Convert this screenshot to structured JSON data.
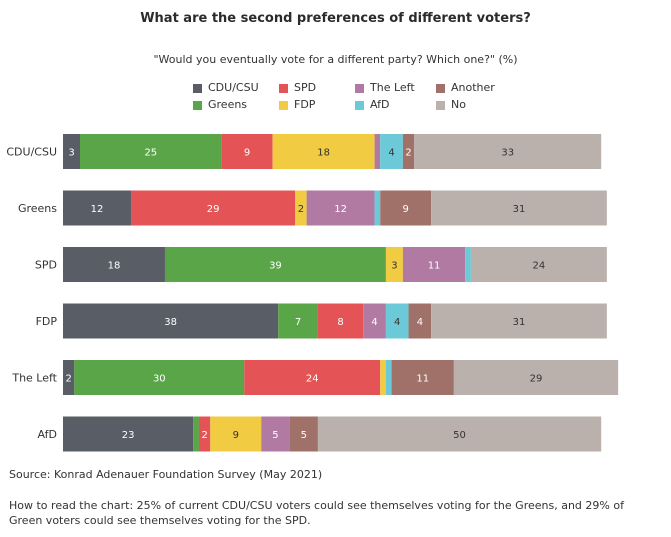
{
  "header": {
    "title": "What are the second preferences of different voters?",
    "subtitle": "\"Would you eventually vote for a different party? Which one?\" (%)"
  },
  "legend": [
    {
      "label": "CDU/CSU",
      "color": "#595d66"
    },
    {
      "label": "SPD",
      "color": "#e45456"
    },
    {
      "label": "The Left",
      "color": "#b07aa2"
    },
    {
      "label": "Another",
      "color": "#9f7169"
    },
    {
      "label": "Greens",
      "color": "#5aa547"
    },
    {
      "label": "FDP",
      "color": "#f1cb41"
    },
    {
      "label": "AfD",
      "color": "#6ccad8"
    },
    {
      "label": "No",
      "color": "#bab0ac"
    }
  ],
  "chart_data": {
    "type": "bar",
    "orientation": "horizontal",
    "stacked": true,
    "title": "What are the second preferences of different voters?",
    "subtitle": "\"Would you eventually vote for a different party? Which one?\" (%)",
    "categories": [
      "CDU/CSU",
      "Greens",
      "SPD",
      "FDP",
      "The Left",
      "AfD"
    ],
    "series": [
      {
        "name": "CDU/CSU",
        "color": "#595d66",
        "values": [
          3,
          12,
          18,
          38,
          2,
          23
        ],
        "labels": [
          "3",
          "12",
          "18",
          "38",
          "2",
          "23"
        ]
      },
      {
        "name": "Greens",
        "color": "#5aa547",
        "values": [
          25,
          0,
          39,
          7,
          30,
          1
        ],
        "labels": [
          "25",
          "",
          "39",
          "7",
          "30",
          ""
        ]
      },
      {
        "name": "SPD",
        "color": "#e45456",
        "values": [
          9,
          29,
          0,
          8,
          24,
          2
        ],
        "labels": [
          "9",
          "29",
          "",
          "8",
          "24",
          "2"
        ]
      },
      {
        "name": "FDP",
        "color": "#f1cb41",
        "values": [
          18,
          2,
          3,
          0,
          1,
          9
        ],
        "labels": [
          "18",
          "2",
          "3",
          "",
          "",
          "9"
        ]
      },
      {
        "name": "The Left",
        "color": "#b07aa2",
        "values": [
          1,
          12,
          11,
          4,
          0,
          5
        ],
        "labels": [
          "",
          "12",
          "11",
          "4",
          "",
          "5"
        ]
      },
      {
        "name": "AfD",
        "color": "#6ccad8",
        "values": [
          4,
          1,
          1,
          4,
          1,
          0
        ],
        "labels": [
          "4",
          "",
          "",
          "4",
          "",
          ""
        ]
      },
      {
        "name": "Another",
        "color": "#9f7169",
        "values": [
          2,
          9,
          0,
          4,
          11,
          5
        ],
        "labels": [
          "2",
          "9",
          "",
          "4",
          "11",
          "5"
        ]
      },
      {
        "name": "No",
        "color": "#bab0ac",
        "values": [
          33,
          31,
          24,
          31,
          29,
          50
        ],
        "labels": [
          "33",
          "31",
          "24",
          "31",
          "29",
          "50"
        ]
      }
    ],
    "xlabel": "",
    "ylabel": "",
    "grid": false,
    "legend": "top-center"
  },
  "footer": {
    "source": "Source: Konrad Adenauer Foundation Survey (May 2021)",
    "note": "How to read the chart: 25% of current CDU/CSU voters could see themselves voting for the Greens, and 29% of Green voters could see themselves voting for the SPD."
  }
}
